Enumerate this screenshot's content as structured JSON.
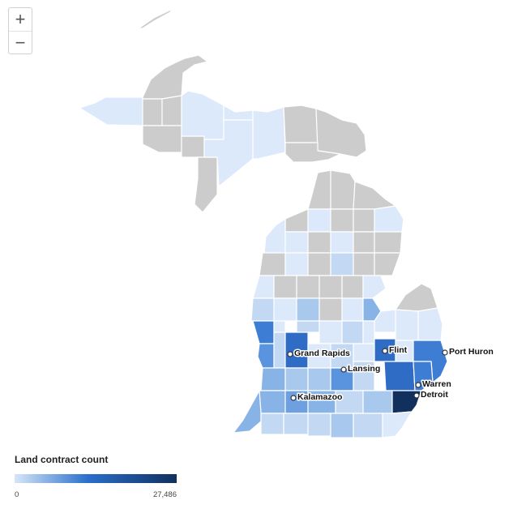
{
  "zoom_controls": {
    "zoom_in": "+",
    "zoom_out": "−"
  },
  "map": {
    "region": "Michigan",
    "no_data_color": "#cccccc",
    "cities": [
      {
        "name": "Grand Rapids"
      },
      {
        "name": "Flint"
      },
      {
        "name": "Port Huron"
      },
      {
        "name": "Lansing"
      },
      {
        "name": "Warren"
      },
      {
        "name": "Detroit"
      },
      {
        "name": "Kalamazoo"
      }
    ]
  },
  "legend": {
    "title": "Land contract count",
    "min_label": "0",
    "max_label": "27,486",
    "min": 0,
    "max": 27486,
    "color_stops": [
      "#d6e6f8",
      "#2a6fcb",
      "#11305e"
    ]
  }
}
